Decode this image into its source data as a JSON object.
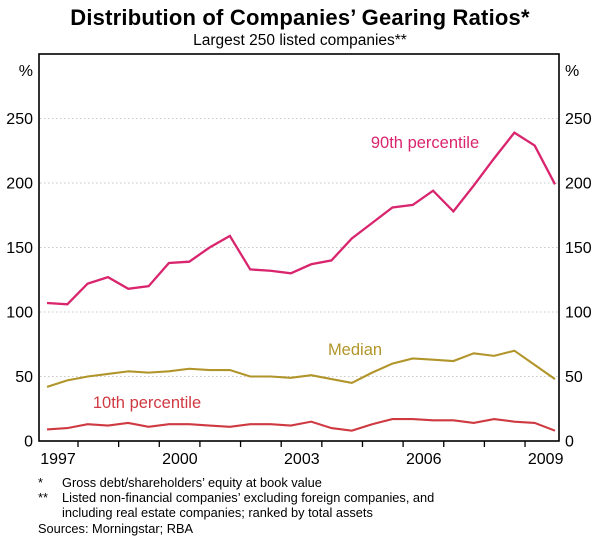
{
  "title": "Distribution of Companies’ Gearing Ratios*",
  "subtitle": "Largest 250 listed companies**",
  "colors": {
    "pink_90th": "#D9246E",
    "olive_median": "#B2952A",
    "red_10th": "#CF3A42",
    "grid": "#C8C8C8",
    "axis": "#000000",
    "text": "#000000",
    "background": "#FFFFFF"
  },
  "axes": {
    "y_unit_left": "%",
    "y_unit_right": "%",
    "y_tick_labels": [
      0,
      50,
      100,
      150,
      200,
      250
    ],
    "x_tick_labels": [
      1997,
      2000,
      2003,
      2006,
      2009
    ],
    "minor_x_tick_count": 12
  },
  "chart_data": {
    "type": "line",
    "title": "Distribution of Companies’ Gearing Ratios*",
    "subtitle": "Largest 250 listed companies**",
    "xlabel": "",
    "ylabel": "%",
    "ylim": [
      0,
      300
    ],
    "yticks": [
      0,
      50,
      100,
      150,
      200,
      250
    ],
    "xticklabels": [
      1997,
      2000,
      2003,
      2006,
      2009
    ],
    "grid": "horizontal-dotted",
    "legend_position": "inline-labels",
    "frequency": "semiannual",
    "x_start": 1996.5,
    "x_step": 0.5,
    "series": [
      {
        "name": "90th percentile",
        "label": "90th percentile",
        "color": "#D9246E",
        "width": 2.3,
        "values": [
          107,
          106,
          122,
          127,
          118,
          120,
          138,
          139,
          150,
          159,
          133,
          132,
          130,
          137,
          140,
          157,
          169,
          181,
          183,
          194,
          178,
          198,
          219,
          239,
          229,
          199
        ]
      },
      {
        "name": "Median",
        "label": "Median",
        "color": "#B2952A",
        "width": 2.1,
        "values": [
          42,
          47,
          50,
          52,
          54,
          53,
          54,
          56,
          55,
          55,
          50,
          50,
          49,
          51,
          48,
          45,
          53,
          60,
          64,
          63,
          62,
          68,
          66,
          70,
          59,
          48
        ]
      },
      {
        "name": "10th percentile",
        "label": "10th percentile",
        "color": "#CF3A42",
        "width": 2.1,
        "values": [
          9,
          10,
          13,
          12,
          14,
          11,
          13,
          13,
          12,
          11,
          13,
          13,
          12,
          15,
          10,
          8,
          13,
          17,
          17,
          16,
          16,
          14,
          17,
          15,
          14,
          8
        ]
      }
    ]
  },
  "footnotes": [
    {
      "marker": "*",
      "text": "Gross debt/shareholders’ equity at book value"
    },
    {
      "marker": "**",
      "text": "Listed non-financial companies’ excluding foreign companies, and\nincluding real estate companies; ranked by total assets"
    }
  ],
  "sources": "Sources: Morningstar; RBA"
}
